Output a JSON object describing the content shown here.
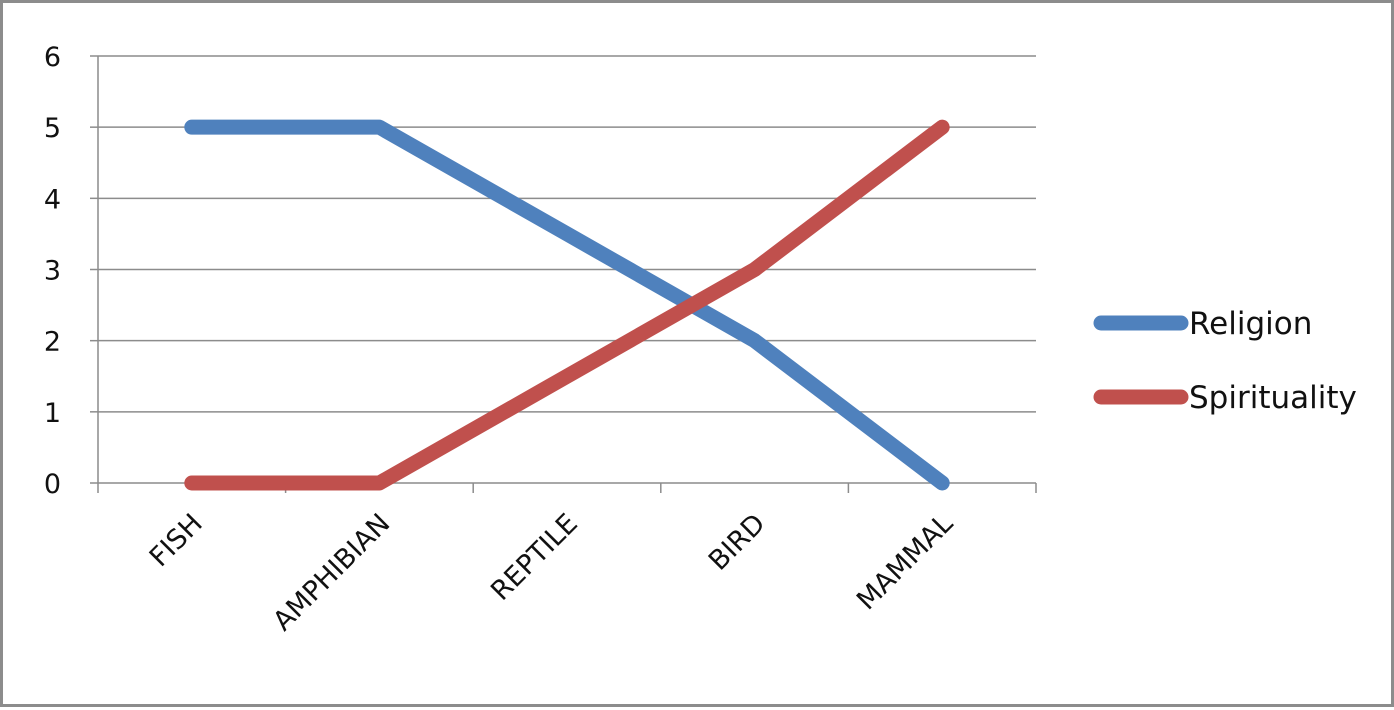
{
  "chart_data": {
    "type": "line",
    "title": "",
    "xlabel": "",
    "ylabel": "",
    "categories": [
      "FISH",
      "AMPHIBIAN",
      "REPTILE",
      "BIRD",
      "MAMMAL"
    ],
    "ylim": [
      0,
      6
    ],
    "yticks": [
      0,
      1,
      2,
      3,
      4,
      5,
      6
    ],
    "grid": "horizontal",
    "legend_position": "right",
    "series": [
      {
        "name": "Religion",
        "values": [
          5,
          5,
          3.5,
          2,
          0
        ],
        "color": "#4f81bd"
      },
      {
        "name": "Spirituality",
        "values": [
          0,
          0,
          1.5,
          3,
          5
        ],
        "color": "#c0504d"
      }
    ]
  }
}
